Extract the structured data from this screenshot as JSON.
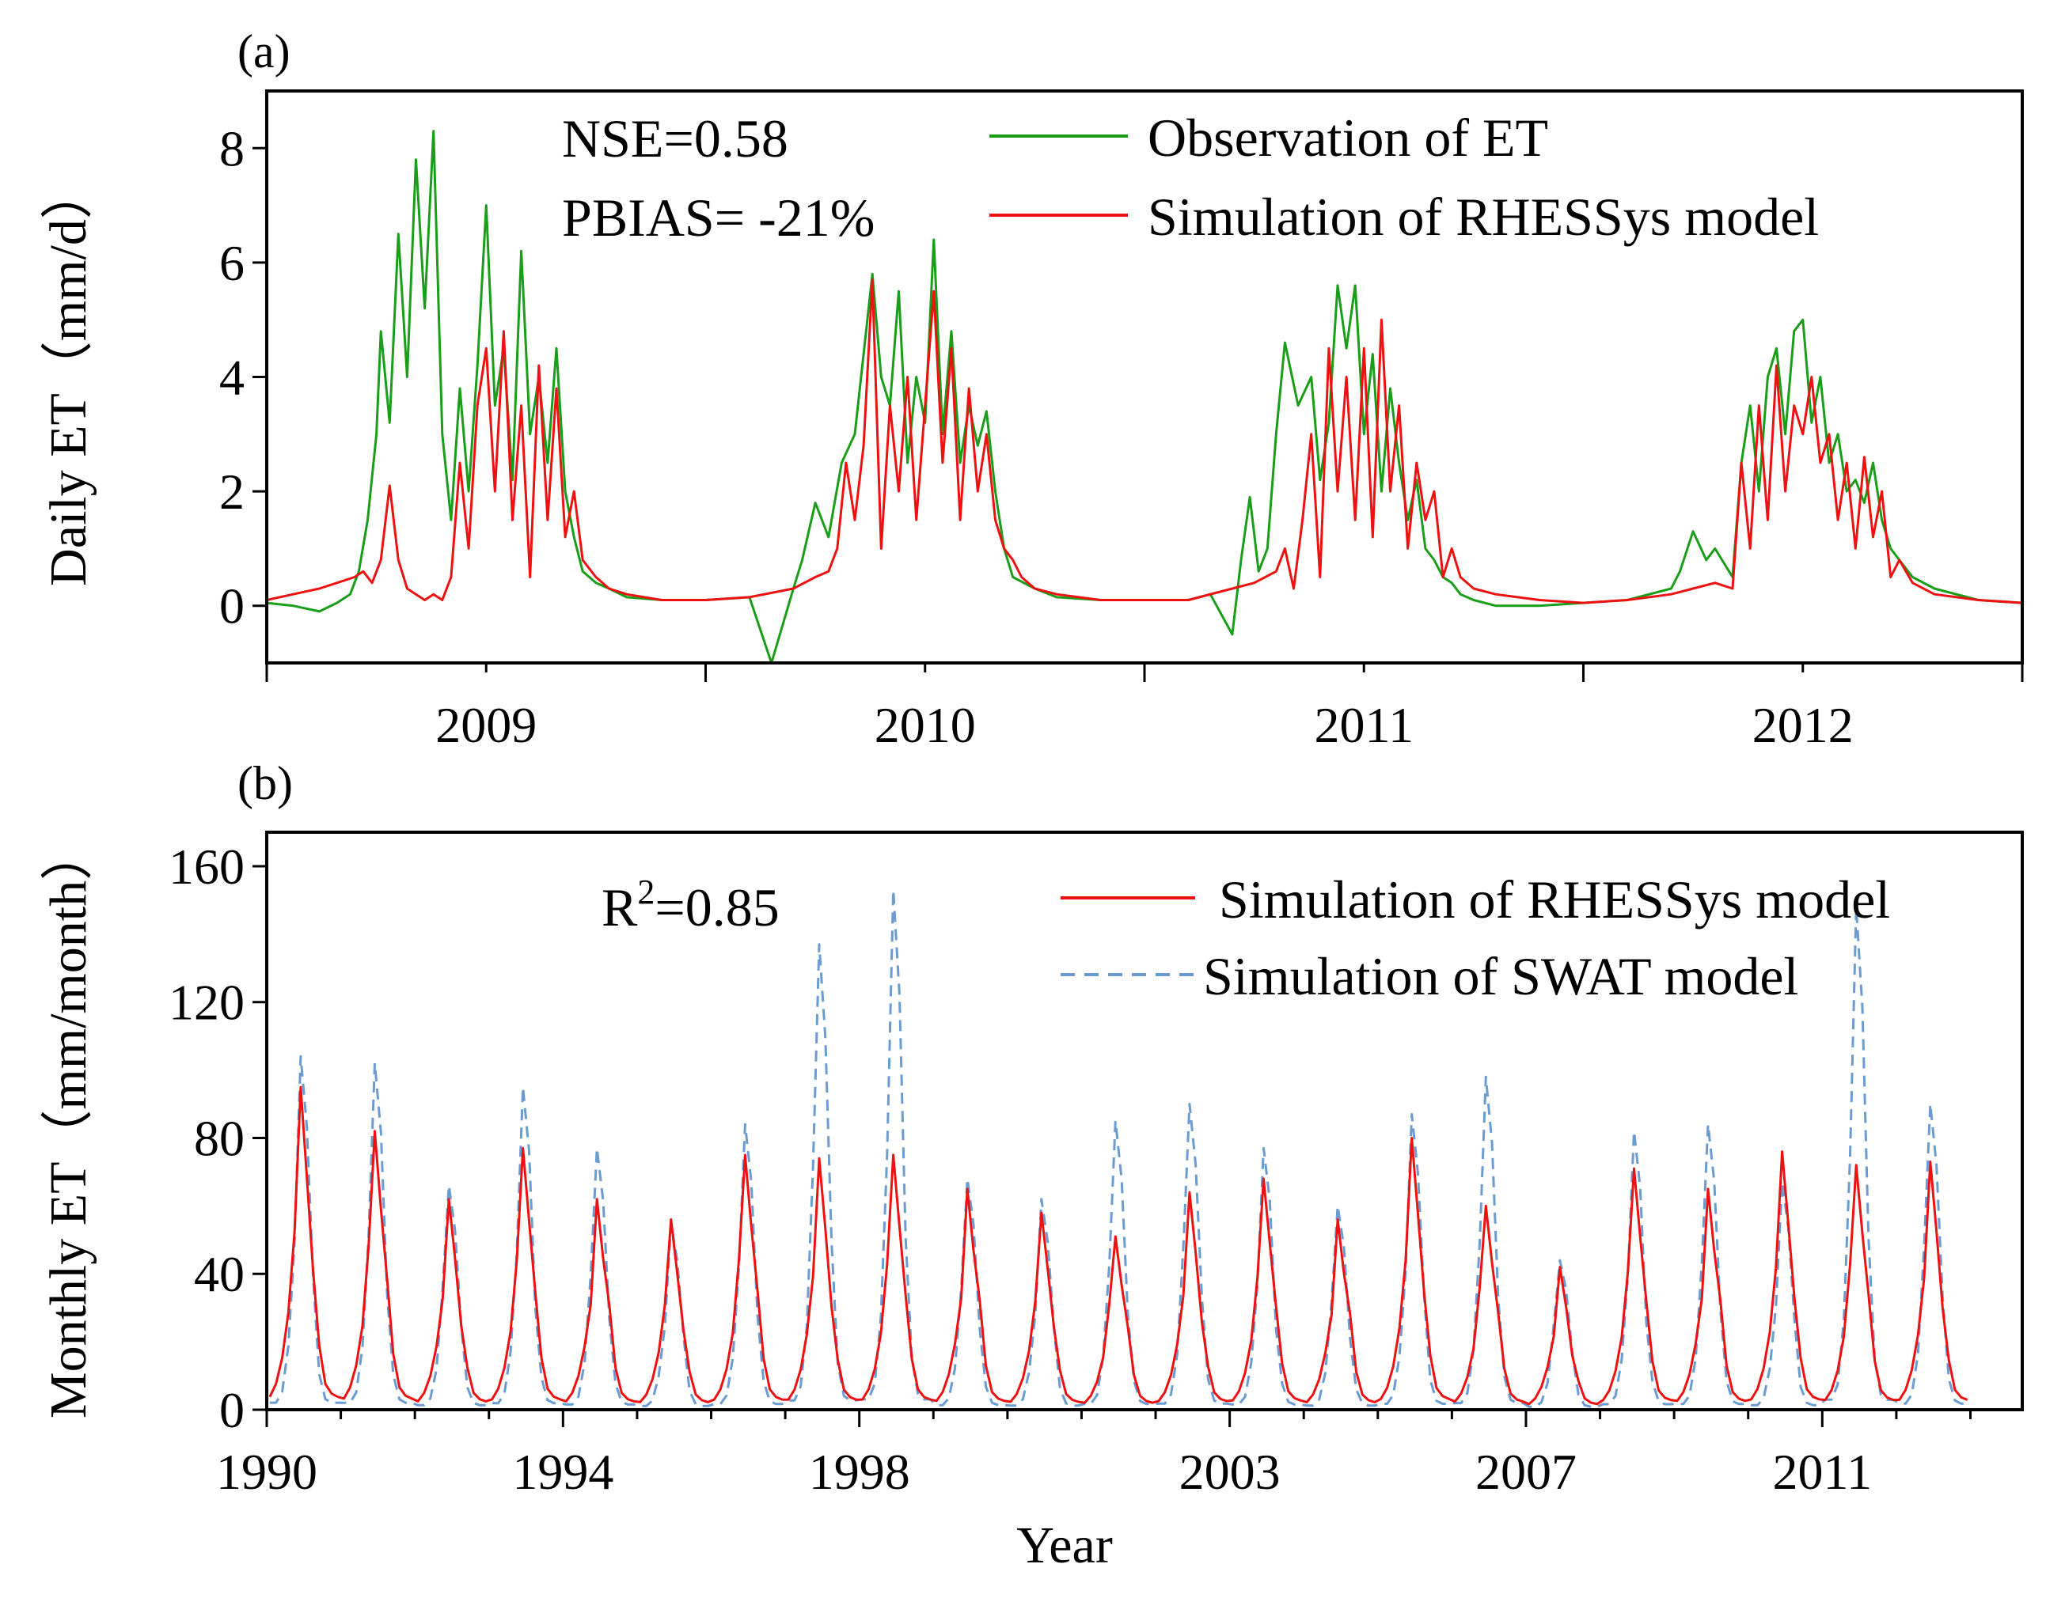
{
  "chart_data": [
    {
      "panel_label": "(a)",
      "type": "line",
      "ylabel": "Daily ET（mm/d）",
      "xlabel": "",
      "ylim": [
        -1,
        9
      ],
      "yticks": [
        "0",
        "2",
        "4",
        "6",
        "8"
      ],
      "ytick_values": [
        0,
        2,
        4,
        6,
        8
      ],
      "xlim": [
        2008.5,
        2012.5
      ],
      "xticks": [
        "2009",
        "2010",
        "2011",
        "2012"
      ],
      "xtick_values": [
        2009,
        2010,
        2011,
        2012
      ],
      "stats": [
        "NSE=0.58",
        "PBIAS= -21%"
      ],
      "legend_position": "top-right",
      "series": [
        {
          "name": "Observation of ET",
          "color": "#1a9e1a",
          "style": "solid",
          "x": [
            2008.5,
            2008.56,
            2008.62,
            2008.66,
            2008.69,
            2008.71,
            2008.73,
            2008.75,
            2008.76,
            2008.78,
            2008.8,
            2008.82,
            2008.84,
            2008.86,
            2008.88,
            2008.9,
            2008.92,
            2008.94,
            2008.96,
            2008.98,
            2009.0,
            2009.02,
            2009.04,
            2009.06,
            2009.08,
            2009.1,
            2009.12,
            2009.14,
            2009.16,
            2009.18,
            2009.2,
            2009.22,
            2009.25,
            2009.28,
            2009.32,
            2009.4,
            2009.5,
            2009.6,
            2009.65,
            2009.7,
            2009.72,
            2009.75,
            2009.78,
            2009.81,
            2009.84,
            2009.88,
            2009.9,
            2009.92,
            2009.94,
            2009.96,
            2009.98,
            2010.0,
            2010.02,
            2010.04,
            2010.06,
            2010.08,
            2010.1,
            2010.12,
            2010.14,
            2010.16,
            2010.18,
            2010.2,
            2010.25,
            2010.3,
            2010.4,
            2010.5,
            2010.6,
            2010.65,
            2010.7,
            2010.72,
            2010.74,
            2010.76,
            2010.78,
            2010.8,
            2010.82,
            2010.85,
            2010.88,
            2010.9,
            2010.92,
            2010.94,
            2010.96,
            2010.98,
            2011.0,
            2011.02,
            2011.04,
            2011.06,
            2011.08,
            2011.1,
            2011.12,
            2011.14,
            2011.16,
            2011.18,
            2011.2,
            2011.22,
            2011.25,
            2011.3,
            2011.4,
            2011.5,
            2011.6,
            2011.7,
            2011.72,
            2011.75,
            2011.78,
            2011.8,
            2011.84,
            2011.86,
            2011.88,
            2011.9,
            2011.92,
            2011.94,
            2011.96,
            2011.98,
            2012.0,
            2012.02,
            2012.04,
            2012.06,
            2012.08,
            2012.1,
            2012.12,
            2012.14,
            2012.16,
            2012.18,
            2012.2,
            2012.22,
            2012.25,
            2012.3,
            2012.4,
            2012.5
          ],
          "values": [
            0.05,
            0.0,
            -0.1,
            0.05,
            0.2,
            0.6,
            1.5,
            3.0,
            4.8,
            3.2,
            6.5,
            4.0,
            7.8,
            5.2,
            8.3,
            3.0,
            1.5,
            3.8,
            2.0,
            4.2,
            7.0,
            3.5,
            4.5,
            2.2,
            6.2,
            3.0,
            4.0,
            2.5,
            4.5,
            2.0,
            1.2,
            0.6,
            0.4,
            0.3,
            0.15,
            0.1,
            0.1,
            0.15,
            -1.0,
            0.3,
            0.8,
            1.8,
            1.2,
            2.5,
            3.0,
            5.8,
            4.0,
            3.5,
            5.5,
            2.5,
            4.0,
            3.2,
            6.4,
            3.0,
            4.8,
            2.5,
            3.5,
            2.8,
            3.4,
            2.0,
            1.0,
            0.5,
            0.3,
            0.15,
            0.1,
            0.1,
            0.1,
            0.2,
            -0.5,
            0.8,
            1.9,
            0.6,
            1.0,
            3.0,
            4.6,
            3.5,
            4.0,
            2.2,
            3.2,
            5.6,
            4.5,
            5.6,
            3.0,
            4.4,
            2.0,
            3.8,
            2.5,
            1.5,
            2.2,
            1.0,
            0.8,
            0.5,
            0.4,
            0.2,
            0.1,
            0.0,
            0.0,
            0.05,
            0.1,
            0.3,
            0.6,
            1.3,
            0.8,
            1.0,
            0.5,
            2.5,
            3.5,
            2.0,
            4.0,
            4.5,
            3.0,
            4.8,
            5.0,
            3.2,
            4.0,
            2.5,
            3.0,
            2.0,
            2.2,
            1.8,
            2.5,
            1.5,
            1.0,
            0.8,
            0.5,
            0.3,
            0.1,
            0.05
          ]
        },
        {
          "name": "Simulation of RHESSys model",
          "color": "#ee1111",
          "style": "solid",
          "x": [
            2008.5,
            2008.56,
            2008.62,
            2008.66,
            2008.7,
            2008.72,
            2008.74,
            2008.76,
            2008.78,
            2008.8,
            2008.82,
            2008.84,
            2008.86,
            2008.88,
            2008.9,
            2008.92,
            2008.94,
            2008.96,
            2008.98,
            2009.0,
            2009.02,
            2009.04,
            2009.06,
            2009.08,
            2009.1,
            2009.12,
            2009.14,
            2009.16,
            2009.18,
            2009.2,
            2009.22,
            2009.25,
            2009.28,
            2009.32,
            2009.4,
            2009.5,
            2009.6,
            2009.7,
            2009.75,
            2009.78,
            2009.8,
            2009.82,
            2009.84,
            2009.86,
            2009.88,
            2009.9,
            2009.92,
            2009.94,
            2009.96,
            2009.98,
            2010.0,
            2010.02,
            2010.04,
            2010.06,
            2010.08,
            2010.1,
            2010.12,
            2010.14,
            2010.16,
            2010.18,
            2010.2,
            2010.22,
            2010.25,
            2010.3,
            2010.4,
            2010.5,
            2010.6,
            2010.7,
            2010.75,
            2010.8,
            2010.82,
            2010.84,
            2010.86,
            2010.88,
            2010.9,
            2010.92,
            2010.94,
            2010.96,
            2010.98,
            2011.0,
            2011.02,
            2011.04,
            2011.06,
            2011.08,
            2011.1,
            2011.12,
            2011.14,
            2011.16,
            2011.18,
            2011.2,
            2011.22,
            2011.25,
            2011.3,
            2011.4,
            2011.5,
            2011.6,
            2011.7,
            2011.75,
            2011.8,
            2011.84,
            2011.86,
            2011.88,
            2011.9,
            2011.92,
            2011.94,
            2011.96,
            2011.98,
            2012.0,
            2012.02,
            2012.04,
            2012.06,
            2012.08,
            2012.1,
            2012.12,
            2012.14,
            2012.16,
            2012.18,
            2012.2,
            2012.22,
            2012.25,
            2012.3,
            2012.4,
            2012.5
          ],
          "values": [
            0.1,
            0.2,
            0.3,
            0.4,
            0.5,
            0.6,
            0.4,
            0.8,
            2.1,
            0.8,
            0.3,
            0.2,
            0.1,
            0.2,
            0.1,
            0.5,
            2.5,
            1.0,
            3.5,
            4.5,
            2.0,
            4.8,
            1.5,
            3.5,
            0.5,
            4.2,
            1.5,
            3.8,
            1.2,
            2.0,
            0.8,
            0.5,
            0.3,
            0.2,
            0.1,
            0.1,
            0.15,
            0.3,
            0.5,
            0.6,
            1.0,
            2.5,
            1.5,
            2.8,
            5.7,
            1.0,
            3.5,
            2.0,
            4.0,
            1.5,
            3.5,
            5.5,
            2.5,
            4.5,
            1.5,
            3.8,
            2.0,
            3.0,
            1.5,
            1.0,
            0.8,
            0.5,
            0.3,
            0.2,
            0.1,
            0.1,
            0.1,
            0.3,
            0.4,
            0.6,
            1.0,
            0.3,
            1.5,
            3.0,
            0.5,
            4.5,
            2.0,
            4.0,
            1.5,
            4.5,
            1.2,
            5.0,
            2.0,
            3.5,
            1.0,
            2.5,
            1.5,
            2.0,
            0.5,
            1.0,
            0.5,
            0.3,
            0.2,
            0.1,
            0.05,
            0.1,
            0.2,
            0.3,
            0.4,
            0.3,
            2.5,
            1.0,
            3.5,
            1.5,
            4.2,
            2.0,
            3.5,
            3.0,
            4.0,
            2.5,
            3.0,
            1.5,
            2.5,
            1.0,
            2.6,
            1.2,
            2.0,
            0.5,
            0.8,
            0.4,
            0.2,
            0.1,
            0.05
          ]
        }
      ]
    },
    {
      "panel_label": "(b)",
      "type": "line",
      "xlabel": "Year",
      "ylabel": "Monthly ET（mm/month）",
      "ylim": [
        0,
        170
      ],
      "yticks": [
        "0",
        "40",
        "80",
        "120",
        "160"
      ],
      "ytick_values": [
        0,
        40,
        80,
        120,
        160
      ],
      "xlim": [
        1990,
        2013.7
      ],
      "xticks": [
        "1990",
        "1994",
        "1998",
        "2003",
        "2007",
        "2011"
      ],
      "xtick_values": [
        1990,
        1994,
        1998,
        2003,
        2007,
        2011
      ],
      "stats_base": "R",
      "stats_sup": "2",
      "stats_rest": "=0.85",
      "legend_position": "top-right",
      "series": [
        {
          "name": "Simulation of RHESSys model",
          "color": "#ee1111",
          "style": "solid",
          "peaks": [
            95,
            82,
            62,
            77,
            62,
            56,
            75,
            74,
            75,
            65,
            58,
            51,
            64,
            68,
            56,
            80,
            60,
            42,
            71,
            65,
            76,
            72,
            73
          ]
        },
        {
          "name": "Simulation of SWAT model",
          "color": "#6a9bd1",
          "style": "dashed",
          "peaks": [
            104,
            102,
            66,
            95,
            77,
            55,
            84,
            137,
            153,
            68,
            62,
            85,
            90,
            77,
            60,
            87,
            98,
            44,
            82,
            84,
            67,
            148,
            90
          ]
        }
      ]
    }
  ]
}
